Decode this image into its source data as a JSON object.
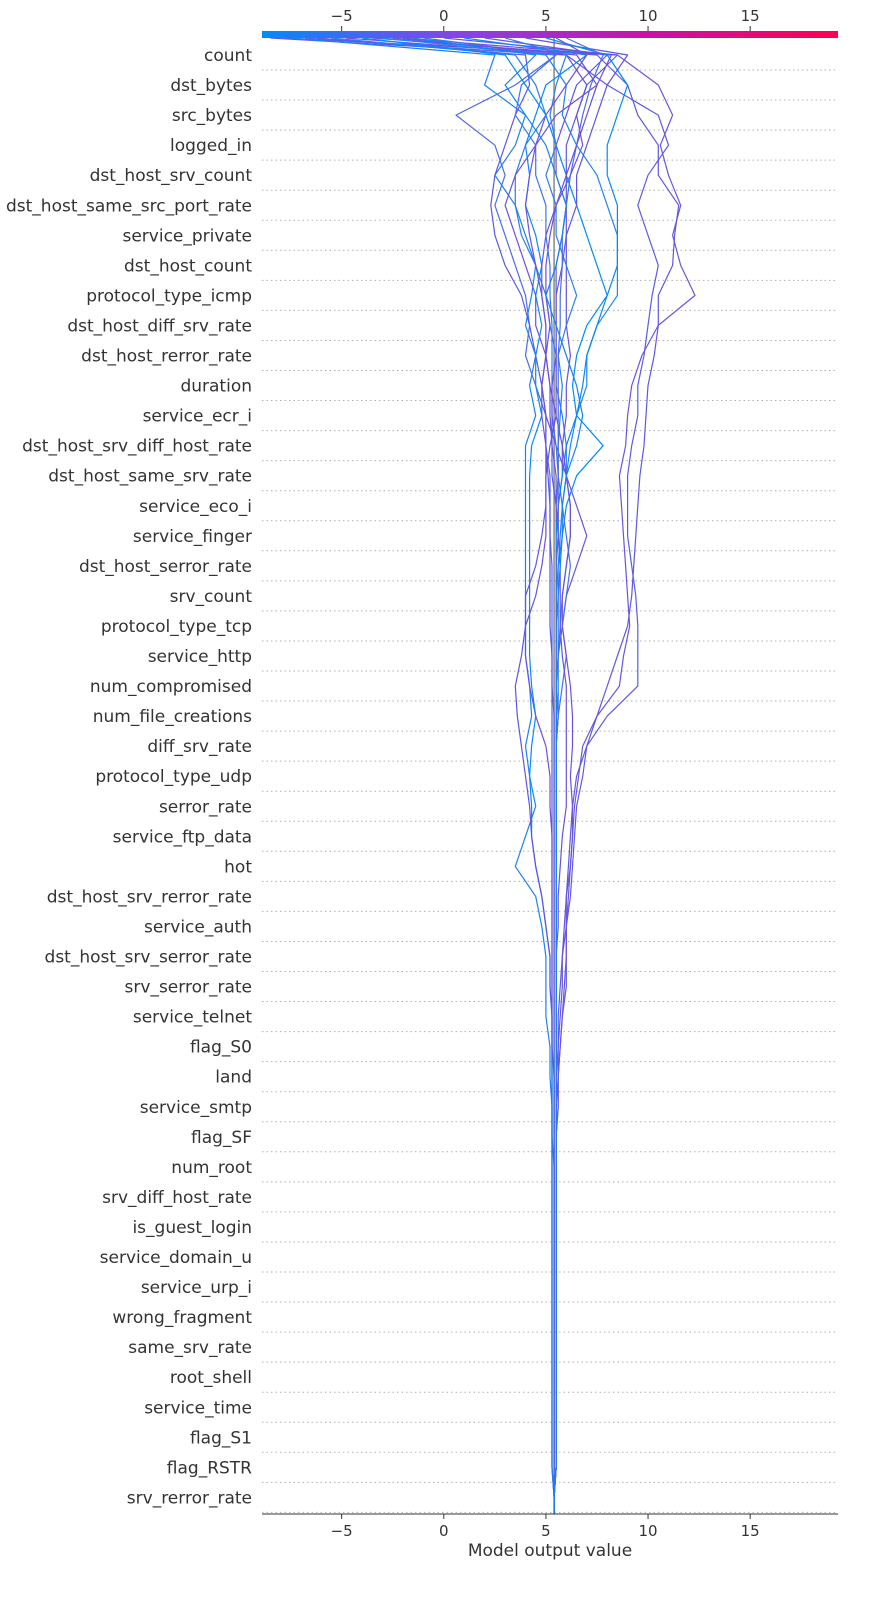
{
  "chart_data": {
    "type": "line",
    "subtype": "shap-decision-plot",
    "xlabel": "Model output value",
    "xlim": [
      -8.9,
      19.3
    ],
    "xticks": [
      -5,
      0,
      5,
      10,
      15
    ],
    "base_value": 5.4,
    "colorbar": {
      "position": "top",
      "range": [
        -8.9,
        19.3
      ],
      "colors": [
        "#008bfb",
        "#8445e8",
        "#c713a6",
        "#ff0051"
      ]
    },
    "grid": "dotted-horizontal",
    "features": [
      "count",
      "dst_bytes",
      "src_bytes",
      "logged_in",
      "dst_host_srv_count",
      "dst_host_same_src_port_rate",
      "service_private",
      "dst_host_count",
      "protocol_type_icmp",
      "dst_host_diff_srv_rate",
      "dst_host_rerror_rate",
      "duration",
      "service_ecr_i",
      "dst_host_srv_diff_host_rate",
      "dst_host_same_srv_rate",
      "service_eco_i",
      "service_finger",
      "dst_host_serror_rate",
      "srv_count",
      "protocol_type_tcp",
      "service_http",
      "num_compromised",
      "num_file_creations",
      "diff_srv_rate",
      "protocol_type_udp",
      "serror_rate",
      "service_ftp_data",
      "hot",
      "dst_host_srv_rerror_rate",
      "service_auth",
      "dst_host_srv_serror_rate",
      "srv_serror_rate",
      "service_telnet",
      "flag_S0",
      "land",
      "service_smtp",
      "flag_SF",
      "num_root",
      "srv_diff_host_rate",
      "is_guest_login",
      "service_domain_u",
      "service_urp_i",
      "wrong_fragment",
      "same_srv_rate",
      "root_shell",
      "service_time",
      "flag_S1",
      "flag_RSTR",
      "srv_rerror_rate"
    ],
    "series": [
      {
        "color": "#5a5be6",
        "values": [
          -8.5,
          6,
          8,
          10.5,
          11,
          10,
          9.5,
          10,
          10.5,
          10.2,
          10,
          9.8,
          9.5,
          9.5,
          9.2,
          9,
          9,
          9,
          9.2,
          9.4,
          9.5,
          9.5,
          9.5,
          8,
          7,
          6.8,
          6.5,
          6.4,
          6.3,
          6.2,
          6,
          6,
          6,
          5.8,
          5.7,
          5.6,
          5.6,
          5.5,
          5.5,
          5.5,
          5.5,
          5.5,
          5.5,
          5.5,
          5.5,
          5.5,
          5.5,
          5.5,
          5.5
        ]
      },
      {
        "color": "#6a55e0",
        "values": [
          -7.8,
          8.5,
          10.5,
          11.2,
          10.6,
          11,
          11.6,
          11.2,
          11.6,
          12.3,
          10.5,
          9.7,
          9.2,
          9,
          8.9,
          8.6,
          8.7,
          8.8,
          8.9,
          9,
          9.1,
          8.8,
          8.6,
          7.5,
          6.8,
          6.6,
          6.4,
          6.3,
          6.2,
          6.1,
          6,
          6,
          5.9,
          5.8,
          5.7,
          5.6,
          5.6,
          5.5,
          5.5,
          5.5,
          5.5,
          5.5,
          5.5,
          5.5,
          5.5,
          5.5,
          5.5,
          5.5,
          5.5
        ]
      },
      {
        "color": "#1a82f5",
        "values": [
          -7.5,
          2.5,
          2,
          4,
          3.5,
          2.5,
          3.5,
          4,
          4.5,
          4.3,
          4,
          4.5,
          4.2,
          4.5,
          4,
          4,
          4,
          4,
          4,
          4,
          4,
          4,
          4.2,
          4.3,
          4,
          4.2,
          4.5,
          4,
          3.5,
          4.5,
          4.8,
          5,
          5,
          5,
          5.2,
          5.2,
          5.3,
          5.3,
          5.4,
          5.4,
          5.4,
          5.4,
          5.4,
          5.4,
          5.4,
          5.4,
          5.4,
          5.4,
          5.4
        ]
      },
      {
        "color": "#4a6ce8",
        "values": [
          -6.8,
          5.5,
          3.5,
          0.6,
          2.5,
          3,
          2.5,
          3,
          3.5,
          4,
          4.2,
          4,
          4.5,
          5,
          5,
          5.2,
          5.2,
          5.2,
          5.3,
          5.3,
          5.3,
          5.3,
          5.3,
          5.4,
          5.4,
          5.4,
          5.4,
          5.4,
          5.4,
          5.4,
          5.4,
          5.4,
          5.4,
          5.4,
          5.4,
          5.4,
          5.4,
          5.4,
          5.4,
          5.4,
          5.4,
          5.4,
          5.4,
          5.4,
          5.4,
          5.4,
          5.4,
          5.4,
          5.4
        ]
      },
      {
        "color": "#5b58e4",
        "values": [
          -6.2,
          4,
          4.2,
          3.5,
          3,
          2.5,
          2.3,
          2.5,
          3,
          3.8,
          4.2,
          4.5,
          4.8,
          5,
          5,
          5.1,
          5.2,
          5.2,
          5.2,
          5.2,
          5.2,
          5.3,
          5.3,
          5.3,
          5.3,
          5.3,
          5.3,
          5.3,
          5.3,
          5.3,
          5.3,
          5.3,
          5.3,
          5.3,
          5.3,
          5.3,
          5.3,
          5.3,
          5.3,
          5.3,
          5.3,
          5.3,
          5.3,
          5.3,
          5.3,
          5.3,
          5.3,
          5.3,
          5.3
        ]
      },
      {
        "color": "#2a7ef2",
        "values": [
          -5.5,
          3.5,
          4.5,
          5,
          4,
          3.5,
          3.5,
          3.8,
          4.5,
          5,
          5.2,
          5.5,
          5.5,
          5.8,
          6,
          6,
          6.2,
          6.2,
          6,
          5.8,
          5.7,
          5.6,
          5.6,
          5.6,
          5.5,
          5.5,
          5.5,
          5.5,
          5.5,
          5.5,
          5.5,
          5.5,
          5.5,
          5.5,
          5.5,
          5.5,
          5.5,
          5.5,
          5.5,
          5.5,
          5.5,
          5.5,
          5.5,
          5.5,
          5.5,
          5.5,
          5.5,
          5.5,
          5.5
        ]
      },
      {
        "color": "#6a52df",
        "values": [
          -4.8,
          6,
          7,
          6.5,
          6.8,
          6.2,
          5.5,
          5.2,
          5,
          5,
          5.2,
          5,
          4.8,
          5,
          5.5,
          6,
          6.5,
          7,
          6.5,
          6,
          5.8,
          5.6,
          5.5,
          5.6,
          5.5,
          5.5,
          5.5,
          5.5,
          5.5,
          5.5,
          5.5,
          5.5,
          5.5,
          5.5,
          5.5,
          5.5,
          5.5,
          5.5,
          5.5,
          5.5,
          5.5,
          5.5,
          5.5,
          5.5,
          5.5,
          5.5,
          5.5,
          5.5,
          5.5
        ]
      },
      {
        "color": "#008bfb",
        "values": [
          -4,
          3,
          4,
          5,
          5.5,
          6,
          6.5,
          7,
          7.5,
          8,
          7,
          6.5,
          6.3,
          6.5,
          7.8,
          6.5,
          6,
          5.8,
          5.6,
          5.5,
          5.5,
          5.5,
          5.5,
          5.5,
          5.5,
          5.5,
          5.5,
          5.5,
          5.5,
          5.5,
          5.5,
          5.5,
          5.5,
          5.5,
          5.5,
          5.5,
          5.5,
          5.5,
          5.5,
          5.5,
          5.5,
          5.5,
          5.5,
          5.5,
          5.5,
          5.5,
          5.5,
          5.5,
          5.5
        ]
      },
      {
        "color": "#5f57e3",
        "values": [
          -3.5,
          7.5,
          9,
          9.5,
          10.5,
          10.5,
          11.5,
          11.3,
          11.2,
          10.5,
          10.5,
          10.3,
          10,
          9.9,
          9.8,
          9.6,
          9.5,
          9.4,
          9.3,
          9.2,
          9,
          8.5,
          8,
          7.5,
          7,
          6.5,
          6.3,
          6.2,
          6.1,
          6,
          5.9,
          5.8,
          5.7,
          5.6,
          5.6,
          5.5,
          5.5,
          5.5,
          5.5,
          5.5,
          5.5,
          5.5,
          5.5,
          5.5,
          5.5,
          5.5,
          5.5,
          5.5,
          5.5
        ]
      },
      {
        "color": "#1f85f5",
        "values": [
          -3,
          5,
          6,
          5.8,
          6.5,
          7.5,
          8,
          8.5,
          8.5,
          8.5,
          7.5,
          7,
          7,
          6.5,
          6.2,
          6,
          5.8,
          5.7,
          5.6,
          5.6,
          5.5,
          5.5,
          5.5,
          5.5,
          5.5,
          5.5,
          5.5,
          5.5,
          5.5,
          5.5,
          5.5,
          5.5,
          5.5,
          5.5,
          5.5,
          5.5,
          5.5,
          5.5,
          5.5,
          5.5,
          5.5,
          5.5,
          5.5,
          5.5,
          5.5,
          5.5,
          5.5,
          5.5,
          5.5
        ]
      },
      {
        "color": "#6d50dd",
        "values": [
          -2,
          8.2,
          7.5,
          5.5,
          4.5,
          3.5,
          3,
          3.5,
          4,
          4.5,
          4.5,
          5,
          4.8,
          4.8,
          5,
          5,
          5,
          5,
          4.8,
          4.5,
          4,
          4,
          4.2,
          4.5,
          5,
          5.2,
          5.2,
          5.3,
          5.3,
          5.3,
          5.3,
          5.3,
          5.3,
          5.3,
          5.3,
          5.3,
          5.3,
          5.3,
          5.3,
          5.3,
          5.3,
          5.3,
          5.3,
          5.3,
          5.3,
          5.3,
          5.3,
          5.3,
          5.3
        ]
      },
      {
        "color": "#3f74ee",
        "values": [
          -1,
          5.5,
          3.8,
          3.5,
          4.5,
          4.5,
          5,
          5,
          5.2,
          5.2,
          5.3,
          5.3,
          5.3,
          5.3,
          5.5,
          5.6,
          5.8,
          6,
          6.2,
          6,
          5.8,
          6,
          5.8,
          5.6,
          5.5,
          5.5,
          5.5,
          5.5,
          5.5,
          5.5,
          5.5,
          5.5,
          5.5,
          5.5,
          5.5,
          5.5,
          5.5,
          5.5,
          5.5,
          5.5,
          5.5,
          5.5,
          5.5,
          5.5,
          5.5,
          5.5,
          5.5,
          5.5,
          5.5
        ]
      },
      {
        "color": "#5a59e5",
        "values": [
          0,
          8.5,
          7,
          6.5,
          6,
          6,
          6,
          5.8,
          5.5,
          5.5,
          5.5,
          5.5,
          5.3,
          5.3,
          5.3,
          5.3,
          5.5,
          5.5,
          5.5,
          5.5,
          5.5,
          5.5,
          5.5,
          5.5,
          5.5,
          5.5,
          5.5,
          5.5,
          5.5,
          5.5,
          5.5,
          5.5,
          5.5,
          5.5,
          5.5,
          5.5,
          5.5,
          5.5,
          5.5,
          5.5,
          5.5,
          5.5,
          5.5,
          5.5,
          5.5,
          5.5,
          5.5,
          5.5,
          5.5
        ]
      },
      {
        "color": "#0b88f8",
        "values": [
          1,
          7,
          5,
          4.5,
          4,
          4.2,
          4,
          4.5,
          4.8,
          4.5,
          4.8,
          4.5,
          4.5,
          4.8,
          4.3,
          4.2,
          4.2,
          4.2,
          4.2,
          4.2,
          4.2,
          4.2,
          4.3,
          4.5,
          4.3,
          4.2,
          4.3,
          4.3,
          4.5,
          4.8,
          5,
          5.2,
          5.2,
          5.3,
          5.3,
          5.3,
          5.3,
          5.3,
          5.3,
          5.3,
          5.3,
          5.3,
          5.3,
          5.3,
          5.3,
          5.3,
          5.3,
          5.3,
          5.3
        ]
      },
      {
        "color": "#6253e1",
        "values": [
          2,
          8,
          6.5,
          6,
          5.5,
          5.5,
          6,
          6,
          6,
          6,
          6,
          6.2,
          6,
          6,
          5.8,
          5.8,
          5.6,
          5.6,
          5.5,
          5.5,
          5.5,
          5.5,
          5.5,
          5.5,
          5.5,
          5.5,
          5.5,
          5.5,
          5.5,
          5.5,
          5.5,
          5.5,
          5.5,
          5.5,
          5.5,
          5.5,
          5.5,
          5.5,
          5.5,
          5.5,
          5.5,
          5.5,
          5.5,
          5.5,
          5.5,
          5.5,
          5.5,
          5.5,
          5.5
        ]
      },
      {
        "color": "#2e7cf1",
        "values": [
          3,
          6,
          5.5,
          5.2,
          5.5,
          5,
          5.5,
          5.5,
          6,
          6.5,
          6,
          5.6,
          5.8,
          5.7,
          5.6,
          5.6,
          5.5,
          5.5,
          5.5,
          5.5,
          5.5,
          5.5,
          5.5,
          5.5,
          5.5,
          5.5,
          5.5,
          5.5,
          5.5,
          5.5,
          5.5,
          5.5,
          5.5,
          5.5,
          5.5,
          5.5,
          5.5,
          5.5,
          5.5,
          5.5,
          5.5,
          5.5,
          5.5,
          5.5,
          5.5,
          5.5,
          5.5,
          5.5,
          5.5
        ]
      },
      {
        "color": "#5e56e2",
        "values": [
          4,
          9,
          8,
          7.5,
          7,
          6.5,
          6.5,
          6,
          5.8,
          5.5,
          5.5,
          5.5,
          5.5,
          5.5,
          5.2,
          5,
          5,
          4.8,
          4.5,
          4,
          4,
          3.8,
          3.5,
          3.6,
          3.8,
          4,
          4.2,
          4.3,
          4.5,
          4.8,
          5,
          5.2,
          5.2,
          5.3,
          5.3,
          5.4,
          5.4,
          5.4,
          5.4,
          5.4,
          5.4,
          5.4,
          5.4,
          5.4,
          5.4,
          5.4,
          5.4,
          5.4,
          5.4
        ]
      },
      {
        "color": "#008bfb",
        "values": [
          5,
          8,
          9,
          8.5,
          8,
          8,
          8.5,
          8.5,
          8.5,
          8,
          7.5,
          7,
          6.8,
          6.5,
          6,
          5.8,
          5.6,
          5.5,
          5.5,
          5.5,
          5.5,
          5.5,
          5.5,
          5.5,
          5.5,
          5.5,
          5.5,
          5.5,
          5.5,
          5.5,
          5.5,
          5.5,
          5.5,
          5.5,
          5.5,
          5.5,
          5.5,
          5.5,
          5.5,
          5.5,
          5.5,
          5.5,
          5.5,
          5.5,
          5.5,
          5.5,
          5.5,
          5.5,
          5.5
        ]
      },
      {
        "color": "#6a52df",
        "values": [
          5.5,
          7,
          6,
          5,
          4.5,
          4.2,
          4,
          4.2,
          4.5,
          4.8,
          5,
          5,
          5.2,
          5.5,
          5.8,
          6,
          6.2,
          6.2,
          6,
          5.8,
          5.8,
          6,
          6.2,
          6.3,
          6.3,
          6.2,
          6.3,
          6.3,
          6.2,
          6,
          6,
          5.8,
          5.8,
          5.7,
          5.6,
          5.6,
          5.5,
          5.5,
          5.5,
          5.5,
          5.5,
          5.5,
          5.5,
          5.5,
          5.5,
          5.5,
          5.5,
          5.5,
          5.5
        ]
      },
      {
        "color": "#4a6ce8",
        "values": [
          6,
          7.8,
          7.2,
          6.8,
          6.5,
          6.2,
          6,
          5.8,
          5.8,
          5.7,
          5.7,
          5.6,
          5.6,
          5.6,
          5.6,
          5.6,
          5.6,
          5.6,
          5.5,
          5.5,
          5.5,
          5.5,
          5.5,
          5.5,
          5.5,
          5.5,
          5.5,
          5.5,
          5.5,
          5.5,
          5.5,
          5.5,
          5.5,
          5.5,
          5.5,
          5.5,
          5.5,
          5.5,
          5.5,
          5.5,
          5.5,
          5.5,
          5.5,
          5.5,
          5.5,
          5.5,
          5.5,
          5.5,
          5.5
        ]
      },
      {
        "color": "#6852e0",
        "values": [
          -2.5,
          6.5,
          7.5,
          7,
          6.5,
          6,
          5.5,
          5,
          4.8,
          4.8,
          5,
          5,
          5.2,
          5.2,
          5.3,
          5.5,
          5.5,
          5.6,
          5.7,
          5.7,
          5.7,
          5.8,
          6,
          6,
          6,
          6,
          6,
          5.8,
          5.7,
          5.6,
          5.6,
          5.5,
          5.5,
          5.5,
          5.5,
          5.5,
          5.5,
          5.5,
          5.5,
          5.5,
          5.5,
          5.5,
          5.5,
          5.5,
          5.5,
          5.5,
          5.5,
          5.5,
          5.5
        ]
      },
      {
        "color": "#1582f5",
        "values": [
          -1.5,
          4.5,
          3,
          4,
          5,
          5.5,
          6,
          5.8,
          5.5,
          5,
          5.5,
          6,
          6.5,
          6.8,
          6.5,
          6,
          5.8,
          5.8,
          5.7,
          5.6,
          5.6,
          5.6,
          5.5,
          5.5,
          5.5,
          5.5,
          5.5,
          5.5,
          5.5,
          5.5,
          5.5,
          5.5,
          5.5,
          5.5,
          5.5,
          5.5,
          5.5,
          5.5,
          5.5,
          5.5,
          5.5,
          5.5,
          5.5,
          5.5,
          5.5,
          5.5,
          5.5,
          5.5,
          5.5
        ]
      }
    ]
  }
}
